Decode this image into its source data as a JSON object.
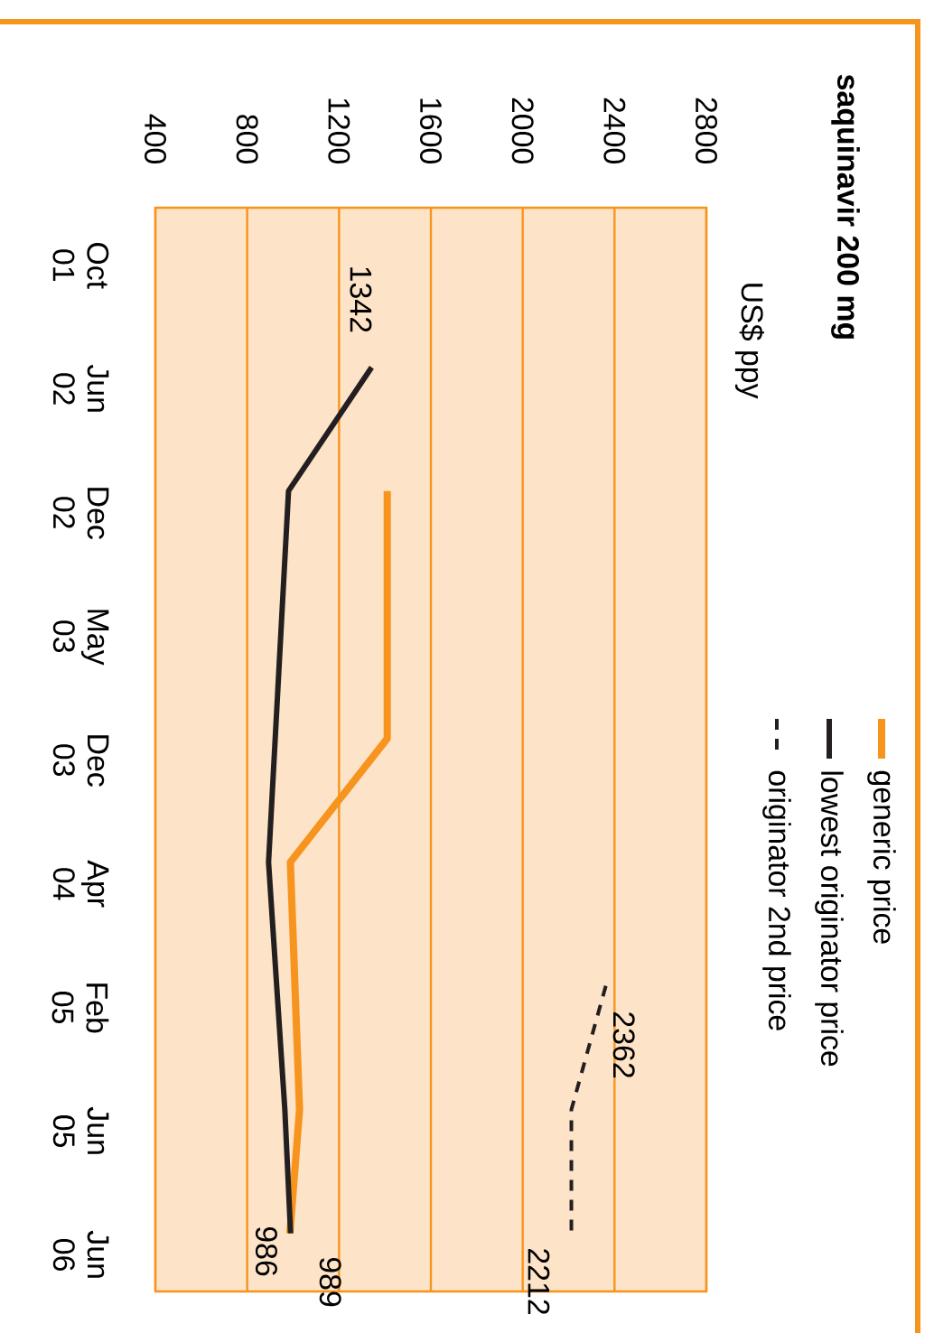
{
  "chart_data": {
    "type": "line",
    "orientation": "horizontal",
    "title": "saquinavir 200 mg",
    "annotations": [
      "US$ ppy"
    ],
    "categories": [
      "Oct 01",
      "Jun 02",
      "Dec 02",
      "May 03",
      "Dec 03",
      "Apr 04",
      "Feb 05",
      "Jun 05",
      "Jun 06"
    ],
    "xlim": [
      400,
      2800
    ],
    "xticks": [
      400,
      800,
      1200,
      1600,
      2000,
      2400,
      2800
    ],
    "grid": "x",
    "legend": "right",
    "marker": "none",
    "series": [
      {
        "name": "generic price",
        "color": "#f7941d",
        "values": [
          null,
          null,
          1410,
          null,
          1410,
          988,
          null,
          1028,
          986
        ],
        "value_labels": [
          null,
          null,
          null,
          null,
          null,
          null,
          null,
          null,
          "986"
        ]
      },
      {
        "name": "lowest originator price",
        "color": "#231f20",
        "values": [
          null,
          1342,
          980,
          null,
          null,
          893,
          null,
          964,
          989
        ],
        "value_labels": [
          null,
          "1342",
          null,
          null,
          null,
          null,
          null,
          null,
          "989"
        ]
      },
      {
        "name": "originator 2nd price",
        "color": "#231f20",
        "line_style": "dashed",
        "values": [
          null,
          null,
          null,
          null,
          null,
          null,
          2362,
          2212,
          2212
        ],
        "value_labels": [
          null,
          null,
          null,
          null,
          null,
          null,
          "2362",
          null,
          "2212"
        ]
      }
    ]
  }
}
